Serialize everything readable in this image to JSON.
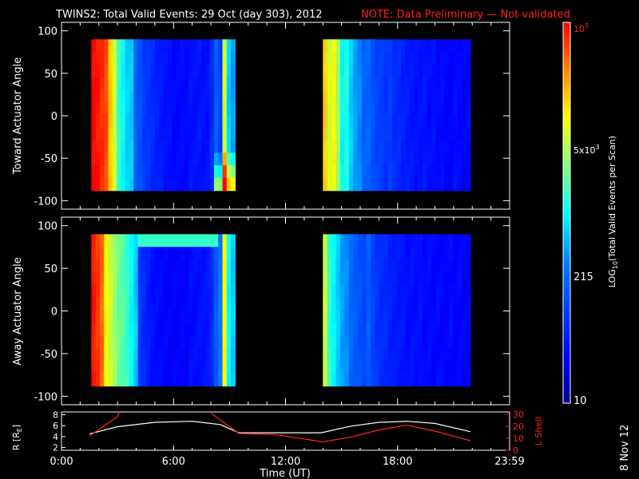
{
  "title": "TWINS2: Total Valid Events: 29 Oct (day 303), 2012",
  "note": "NOTE: Data Preliminary — Not validated",
  "stamp": "8 Nov 12",
  "colors": {
    "note": "#ff2020",
    "lshell": "#ff2020",
    "r_line": "#ffffff",
    "background": "#000000"
  },
  "chart_data": [
    {
      "type": "heatmap",
      "ylabel": "Toward Actuator Angle",
      "ylim": [
        -110,
        110
      ],
      "yticks": [
        -100,
        -50,
        0,
        50,
        100
      ],
      "xlim_hours": [
        0,
        24
      ],
      "scan_angle_range": [
        -88,
        90
      ],
      "blocks": [
        {
          "start_hour": 1.6,
          "end_hour": 9.3,
          "profile": [
            0,
            0.02,
            0.04,
            0.07,
            0.2,
            0.3,
            0.45,
            0.5,
            0.55,
            0.55,
            0.7,
            0.72,
            0.77,
            0.78,
            0.8,
            0.82,
            0.83,
            0.85,
            0.85,
            0.87,
            0.87,
            0.86,
            0.87,
            0.85,
            0.85,
            0.84,
            0.85,
            0.85,
            0.8,
            0.7,
            0.75,
            0.3,
            0.55,
            0.6
          ]
        },
        {
          "start_hour": 14.0,
          "end_hour": 21.9,
          "profile": [
            0.2,
            0.3,
            0.25,
            0.35,
            0.5,
            0.48,
            0.55,
            0.6,
            0.62,
            0.7,
            0.68,
            0.72,
            0.75,
            0.76,
            0.78,
            0.76,
            0.8,
            0.8,
            0.82,
            0.83,
            0.84,
            0.85,
            0.85,
            0.84,
            0.86,
            0.85,
            0.87,
            0.86,
            0.88,
            0.88,
            0.86,
            0.87,
            0.88,
            0.87
          ]
        }
      ]
    },
    {
      "type": "heatmap",
      "ylabel": "Away Actuator Angle",
      "ylim": [
        -110,
        110
      ],
      "yticks": [
        -100,
        -50,
        0,
        50,
        100
      ],
      "xlim_hours": [
        0,
        24
      ],
      "scan_angle_range": [
        -88,
        90
      ],
      "blocks": [
        {
          "start_hour": 1.6,
          "end_hour": 9.3,
          "profile": [
            0.02,
            0.05,
            0.1,
            0.25,
            0.3,
            0.35,
            0.4,
            0.42,
            0.45,
            0.5,
            0.55,
            0.78,
            0.8,
            0.83,
            0.85,
            0.86,
            0.87,
            0.88,
            0.88,
            0.88,
            0.88,
            0.87,
            0.88,
            0.86,
            0.86,
            0.85,
            0.85,
            0.84,
            0.8,
            0.7,
            0.65,
            0.25,
            0.5,
            0.55
          ]
        },
        {
          "start_hour": 14.0,
          "end_hour": 21.9,
          "profile": [
            0.3,
            0.45,
            0.5,
            0.55,
            0.6,
            0.62,
            0.68,
            0.7,
            0.72,
            0.75,
            0.7,
            0.75,
            0.78,
            0.8,
            0.8,
            0.82,
            0.83,
            0.84,
            0.84,
            0.86,
            0.85,
            0.86,
            0.85,
            0.87,
            0.86,
            0.87,
            0.86,
            0.87,
            0.88,
            0.86,
            0.88,
            0.87,
            0.88,
            0.88
          ]
        }
      ]
    },
    {
      "type": "line",
      "xlabel": "Time (UT)",
      "xticks": [
        "0:00",
        "6:00",
        "12:00",
        "18:00",
        "23:59"
      ],
      "xlim_hours": [
        0,
        24
      ],
      "ylabel": "R [RE]",
      "ylabel_main": "R [R",
      "ylabel_sub": "E",
      "ylabel_close": "]",
      "yticks": [
        2,
        4,
        6,
        8
      ],
      "ylim": [
        1.5,
        8.5
      ],
      "ylabel_right": "L Shell",
      "yticks_right": [
        0,
        10,
        20,
        30
      ],
      "ylim_right": [
        0,
        32
      ],
      "series": [
        {
          "axis": "left",
          "x": [
            1.5,
            3.0,
            5.0,
            7.0,
            8.5,
            9.5,
            13.9,
            15.5,
            17.0,
            18.5,
            20.0,
            21.9
          ],
          "y": [
            4.5,
            5.8,
            6.6,
            6.8,
            6.2,
            4.7,
            4.7,
            5.9,
            6.6,
            6.8,
            6.4,
            4.9
          ]
        },
        {
          "axis": "right",
          "x": [
            1.5,
            3.0,
            3.1,
            null,
            8.0,
            8.1,
            9.5,
            11.5,
            14.0,
            15.5,
            17.0,
            18.5,
            20.0,
            21.9
          ],
          "y": [
            12,
            28,
            32,
            null,
            32,
            30,
            14,
            13,
            7,
            11,
            17,
            21,
            16,
            8
          ]
        }
      ]
    },
    {
      "type": "colorbar",
      "label": "LOG10(Total Valid Events per Scan)",
      "label_main": "LOG",
      "label_sub": "10",
      "label_rest": "(Total Valid  Events per Scan)",
      "tick_top_base": "10",
      "tick_top_exp": "5",
      "tick_mid_base": "5x10",
      "tick_mid_exp": "3",
      "tick_low": "215",
      "tick_bottom": "10",
      "log_min": 1,
      "log_max": 5
    }
  ]
}
